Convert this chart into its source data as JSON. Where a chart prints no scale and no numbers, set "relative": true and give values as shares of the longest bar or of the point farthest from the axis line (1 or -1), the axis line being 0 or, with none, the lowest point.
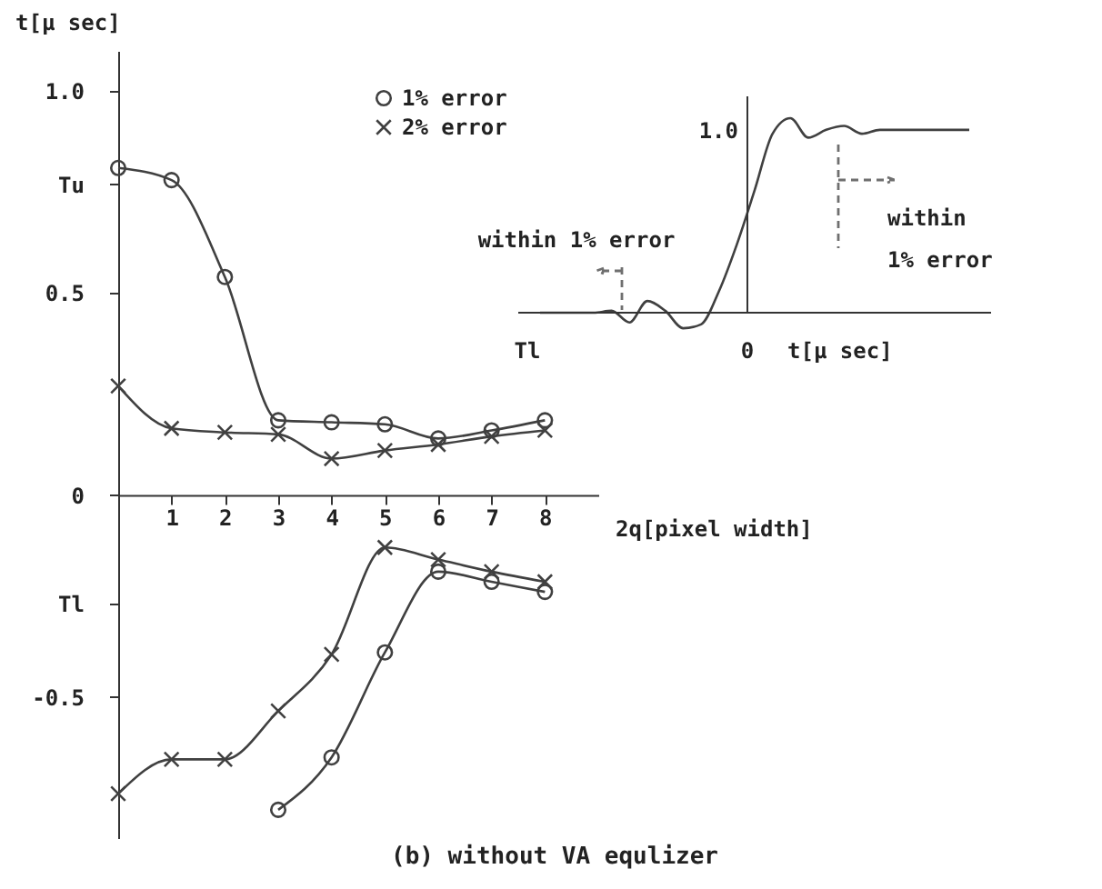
{
  "chart_data": [
    {
      "type": "line",
      "title": "(b) without VA equlizer",
      "ylabel": "t[μ sec]",
      "xlabel": "2q[pixel width]",
      "xlim": [
        0,
        9
      ],
      "xticks": [
        1,
        2,
        3,
        4,
        5,
        6,
        7,
        8
      ],
      "ylim": [
        -0.85,
        1.1
      ],
      "yticks": [
        {
          "value": 1,
          "label": "1.0"
        },
        {
          "value": 0.77,
          "label": "Tu"
        },
        0.5,
        0,
        {
          "value": -0.27,
          "label": "Tl"
        },
        -0.5
      ],
      "legend": "top",
      "grid": false,
      "series": [
        {
          "name": "1% error",
          "color": "#404040",
          "marker": "circle",
          "x": [
            0,
            1,
            2,
            3,
            4,
            5,
            6,
            7,
            8
          ],
          "values": [
            0.81,
            0.78,
            0.54,
            0.185,
            0.18,
            0.175,
            0.14,
            0.16,
            0.185
          ]
        },
        {
          "name": "2% error",
          "color": "#404040",
          "marker": "cross",
          "x": [
            0,
            1,
            2,
            3,
            4,
            5,
            6,
            7,
            8
          ],
          "values": [
            0.27,
            0.165,
            0.155,
            0.15,
            0.09,
            0.11,
            0.125,
            0.145,
            0.16
          ]
        },
        {
          "color": "#404040",
          "marker": "circle",
          "x": [
            3,
            4,
            5,
            6,
            7,
            8
          ],
          "values": [
            -0.78,
            -0.65,
            -0.39,
            -0.19,
            -0.215,
            -0.24
          ]
        },
        {
          "color": "#404040",
          "marker": "cross",
          "x": [
            0,
            1,
            2,
            3,
            4,
            5,
            6,
            7,
            8
          ],
          "values": [
            -0.74,
            -0.655,
            -0.655,
            -0.535,
            -0.395,
            -0.13,
            -0.16,
            -0.19,
            -0.215
          ]
        }
      ]
    },
    {
      "type": "line",
      "relative": true,
      "xlabel": "t[μ sec]",
      "categories": [
        null,
        null,
        null,
        null,
        null,
        null,
        null,
        null,
        null,
        null,
        null,
        null,
        null,
        null,
        null,
        null,
        null,
        null,
        null,
        null,
        null,
        null,
        null,
        null,
        null
      ],
      "series": [
        {
          "color": "#404040",
          "values": [
            0,
            0,
            0,
            0,
            0.01,
            -0.05,
            0.06,
            0.01,
            -0.08,
            -0.06,
            0.11,
            0.35,
            0.63,
            0.92,
            1,
            0.9,
            0.94,
            0.96,
            0.92,
            0.94,
            0.94,
            0.94,
            0.94,
            0.94,
            0.94
          ]
        }
      ],
      "annotations": [
        "1.0",
        "0",
        "Tl",
        "within 1% error",
        "within\n1% error"
      ]
    }
  ]
}
